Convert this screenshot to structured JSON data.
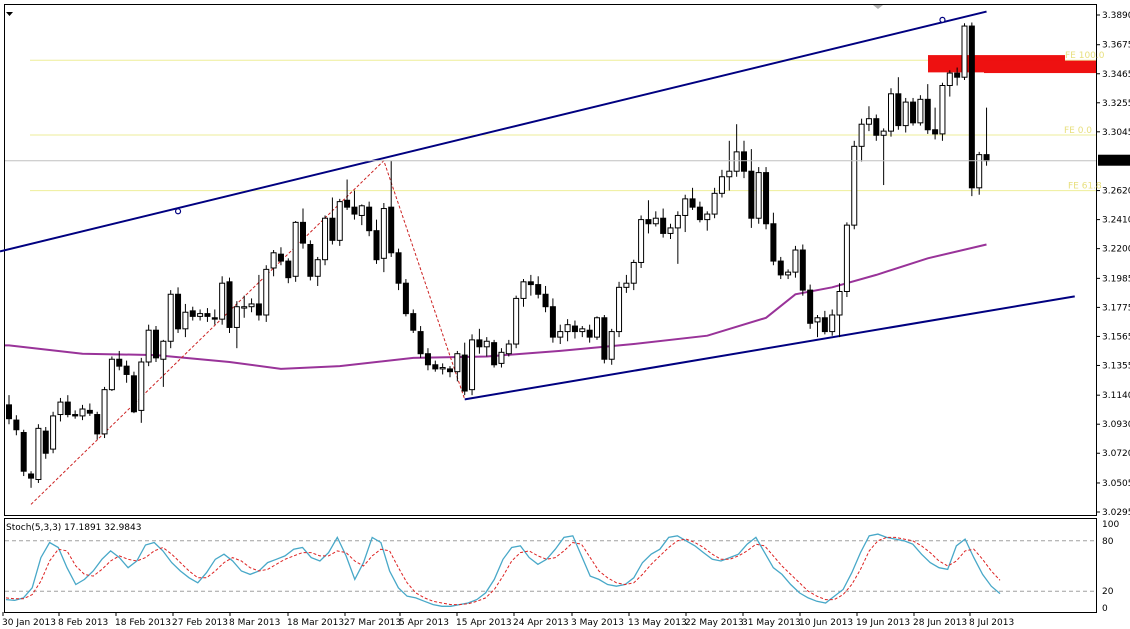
{
  "indicator_label": "Stoch(5,3,3) 17.1891 32.9843",
  "price_labels": [
    "3.3890",
    "3.3675",
    "3.3465",
    "3.3255",
    "3.3045",
    "3.2836",
    "3.2620",
    "3.2410",
    "3.2200",
    "3.1985",
    "3.1775",
    "3.1565",
    "3.1355",
    "3.1140",
    "3.0930",
    "3.0720",
    "3.0505",
    "3.0295"
  ],
  "current_price": "3.2836",
  "stoch_labels": [
    "100",
    "80",
    "20",
    "0"
  ],
  "fib_labels": [
    "FE 100.0",
    "FE 0.0",
    "FE 61.8"
  ],
  "date_labels": [
    "30 Jan 2013",
    "8 Feb 2013",
    "18 Feb 2013",
    "27 Feb 2013",
    "8 Mar 2013",
    "18 Mar 2013",
    "27 Mar 2013",
    "5 Apr 2013",
    "15 Apr 2013",
    "24 Apr 2013",
    "3 May 2013",
    "13 May 2013",
    "22 May 2013",
    "31 May 2013",
    "10 Jun 2013",
    "19 Jun 2013",
    "28 Jun 2013",
    "8 Jul 2013"
  ],
  "colors": {
    "candle": "#000000",
    "channel": "#000080",
    "moving_average": "#993399",
    "fib": "#eeee99",
    "resistance_zone": "#ee1111",
    "zigzag": "#cc2222",
    "stoch_main": "#48a8c8",
    "stoch_signal": "#dd2222",
    "stoch_levels": "#a0a0a0"
  },
  "chart_data": {
    "type": "candlestick",
    "ylim": [
      3.0295,
      3.389
    ],
    "fib_levels": [
      {
        "label": "FE 100.0",
        "value": 3.3563
      },
      {
        "label": "FE 0.0",
        "value": 3.3022
      },
      {
        "label": "FE 61.8",
        "value": 3.262
      }
    ],
    "resistance_zone": [
      3.3475,
      3.36
    ],
    "candles": [
      [
        3.107,
        3.114,
        3.093,
        3.097
      ],
      [
        3.096,
        3.0995,
        3.085,
        3.089
      ],
      [
        3.087,
        3.089,
        3.0555,
        3.059
      ],
      [
        3.057,
        3.059,
        3.047,
        3.054
      ],
      [
        3.053,
        3.093,
        3.0505,
        3.09
      ],
      [
        3.088,
        3.091,
        3.068,
        3.072
      ],
      [
        3.075,
        3.102,
        3.072,
        3.099
      ],
      [
        3.1,
        3.112,
        3.095,
        3.109
      ],
      [
        3.109,
        3.114,
        3.098,
        3.1
      ],
      [
        3.1,
        3.103,
        3.097,
        3.099
      ],
      [
        3.099,
        3.107,
        3.096,
        3.104
      ],
      [
        3.103,
        3.108,
        3.099,
        3.101
      ],
      [
        3.1,
        3.102,
        3.082,
        3.086
      ],
      [
        3.086,
        3.12,
        3.083,
        3.118
      ],
      [
        3.118,
        3.142,
        3.117,
        3.14
      ],
      [
        3.14,
        3.146,
        3.132,
        3.135
      ],
      [
        3.135,
        3.139,
        3.123,
        3.129
      ],
      [
        3.128,
        3.131,
        3.101,
        3.102
      ],
      [
        3.103,
        3.141,
        3.094,
        3.138
      ],
      [
        3.138,
        3.165,
        3.135,
        3.161
      ],
      [
        3.161,
        3.164,
        3.138,
        3.141
      ],
      [
        3.14,
        3.154,
        3.12,
        3.153
      ],
      [
        3.153,
        3.19,
        3.148,
        3.187
      ],
      [
        3.187,
        3.192,
        3.159,
        3.162
      ],
      [
        3.162,
        3.18,
        3.156,
        3.174
      ],
      [
        3.175,
        3.178,
        3.168,
        3.171
      ],
      [
        3.171,
        3.176,
        3.168,
        3.173
      ],
      [
        3.173,
        3.177,
        3.167,
        3.171
      ],
      [
        3.17,
        3.176,
        3.165,
        3.169
      ],
      [
        3.169,
        3.2,
        3.165,
        3.195
      ],
      [
        3.196,
        3.199,
        3.159,
        3.163
      ],
      [
        3.163,
        3.182,
        3.148,
        3.178
      ],
      [
        3.177,
        3.186,
        3.17,
        3.178
      ],
      [
        3.178,
        3.184,
        3.174,
        3.18
      ],
      [
        3.18,
        3.201,
        3.168,
        3.172
      ],
      [
        3.172,
        3.208,
        3.167,
        3.205
      ],
      [
        3.206,
        3.219,
        3.2,
        3.217
      ],
      [
        3.216,
        3.221,
        3.208,
        3.211
      ],
      [
        3.211,
        3.213,
        3.195,
        3.199
      ],
      [
        3.2,
        3.24,
        3.196,
        3.239
      ],
      [
        3.239,
        3.249,
        3.22,
        3.224
      ],
      [
        3.223,
        3.226,
        3.197,
        3.2
      ],
      [
        3.2,
        3.214,
        3.193,
        3.212
      ],
      [
        3.212,
        3.244,
        3.208,
        3.242
      ],
      [
        3.242,
        3.257,
        3.223,
        3.226
      ],
      [
        3.226,
        3.256,
        3.222,
        3.254
      ],
      [
        3.255,
        3.27,
        3.248,
        3.25
      ],
      [
        3.25,
        3.262,
        3.241,
        3.245
      ],
      [
        3.244,
        3.252,
        3.237,
        3.251
      ],
      [
        3.25,
        3.254,
        3.229,
        3.233
      ],
      [
        3.233,
        3.241,
        3.209,
        3.212
      ],
      [
        3.213,
        3.253,
        3.203,
        3.249
      ],
      [
        3.25,
        3.2836,
        3.214,
        3.217
      ],
      [
        3.217,
        3.22,
        3.19,
        3.195
      ],
      [
        3.195,
        3.198,
        3.171,
        3.173
      ],
      [
        3.173,
        3.176,
        3.159,
        3.161
      ],
      [
        3.16,
        3.164,
        3.141,
        3.144
      ],
      [
        3.144,
        3.148,
        3.132,
        3.136
      ],
      [
        3.136,
        3.139,
        3.131,
        3.133
      ],
      [
        3.133,
        3.137,
        3.129,
        3.134
      ],
      [
        3.133,
        3.135,
        3.127,
        3.131
      ],
      [
        3.131,
        3.146,
        3.124,
        3.144
      ],
      [
        3.143,
        3.152,
        3.114,
        3.117
      ],
      [
        3.118,
        3.158,
        3.114,
        3.154
      ],
      [
        3.154,
        3.162,
        3.144,
        3.149
      ],
      [
        3.149,
        3.156,
        3.142,
        3.153
      ],
      [
        3.152,
        3.154,
        3.134,
        3.136
      ],
      [
        3.137,
        3.148,
        3.134,
        3.145
      ],
      [
        3.144,
        3.154,
        3.142,
        3.151
      ],
      [
        3.151,
        3.186,
        3.148,
        3.184
      ],
      [
        3.184,
        3.198,
        3.178,
        3.196
      ],
      [
        3.196,
        3.201,
        3.186,
        3.194
      ],
      [
        3.194,
        3.2,
        3.184,
        3.187
      ],
      [
        3.187,
        3.193,
        3.174,
        3.178
      ],
      [
        3.178,
        3.184,
        3.152,
        3.156
      ],
      [
        3.156,
        3.165,
        3.151,
        3.16
      ],
      [
        3.16,
        3.169,
        3.153,
        3.165
      ],
      [
        3.164,
        3.168,
        3.155,
        3.16
      ],
      [
        3.16,
        3.164,
        3.156,
        3.162
      ],
      [
        3.161,
        3.165,
        3.152,
        3.156
      ],
      [
        3.156,
        3.171,
        3.154,
        3.17
      ],
      [
        3.17,
        3.172,
        3.137,
        3.14
      ],
      [
        3.14,
        3.162,
        3.136,
        3.16
      ],
      [
        3.16,
        3.196,
        3.156,
        3.192
      ],
      [
        3.192,
        3.201,
        3.188,
        3.195
      ],
      [
        3.195,
        3.212,
        3.19,
        3.21
      ],
      [
        3.21,
        3.244,
        3.206,
        3.241
      ],
      [
        3.241,
        3.255,
        3.231,
        3.238
      ],
      [
        3.238,
        3.247,
        3.236,
        3.242
      ],
      [
        3.242,
        3.249,
        3.228,
        3.231
      ],
      [
        3.231,
        3.238,
        3.227,
        3.235
      ],
      [
        3.235,
        3.247,
        3.209,
        3.244
      ],
      [
        3.244,
        3.259,
        3.232,
        3.256
      ],
      [
        3.256,
        3.264,
        3.248,
        3.25
      ],
      [
        3.25,
        3.254,
        3.239,
        3.241
      ],
      [
        3.241,
        3.247,
        3.233,
        3.245
      ],
      [
        3.245,
        3.264,
        3.242,
        3.26
      ],
      [
        3.26,
        3.277,
        3.257,
        3.272
      ],
      [
        3.272,
        3.298,
        3.262,
        3.276
      ],
      [
        3.276,
        3.31,
        3.272,
        3.29
      ],
      [
        3.29,
        3.298,
        3.271,
        3.276
      ],
      [
        3.276,
        3.292,
        3.235,
        3.242
      ],
      [
        3.242,
        3.279,
        3.238,
        3.275
      ],
      [
        3.275,
        3.279,
        3.234,
        3.238
      ],
      [
        3.238,
        3.246,
        3.208,
        3.211
      ],
      [
        3.211,
        3.214,
        3.198,
        3.201
      ],
      [
        3.201,
        3.205,
        3.198,
        3.203
      ],
      [
        3.203,
        3.222,
        3.199,
        3.219
      ],
      [
        3.219,
        3.223,
        3.186,
        3.19
      ],
      [
        3.19,
        3.194,
        3.162,
        3.166
      ],
      [
        3.167,
        3.172,
        3.156,
        3.17
      ],
      [
        3.17,
        3.175,
        3.158,
        3.16
      ],
      [
        3.16,
        3.176,
        3.157,
        3.172
      ],
      [
        3.172,
        3.195,
        3.156,
        3.189
      ],
      [
        3.189,
        3.239,
        3.185,
        3.237
      ],
      [
        3.237,
        3.298,
        3.234,
        3.294
      ],
      [
        3.294,
        3.314,
        3.283,
        3.31
      ],
      [
        3.31,
        3.323,
        3.305,
        3.314
      ],
      [
        3.314,
        3.317,
        3.298,
        3.302
      ],
      [
        3.302,
        3.307,
        3.266,
        3.305
      ],
      [
        3.305,
        3.336,
        3.301,
        3.332
      ],
      [
        3.332,
        3.344,
        3.306,
        3.309
      ],
      [
        3.309,
        3.329,
        3.304,
        3.326
      ],
      [
        3.326,
        3.329,
        3.309,
        3.311
      ],
      [
        3.311,
        3.331,
        3.309,
        3.328
      ],
      [
        3.328,
        3.339,
        3.303,
        3.306
      ],
      [
        3.306,
        3.322,
        3.299,
        3.303
      ],
      [
        3.303,
        3.34,
        3.298,
        3.338
      ],
      [
        3.338,
        3.349,
        3.33,
        3.347
      ],
      [
        3.347,
        3.351,
        3.338,
        3.344
      ],
      [
        3.344,
        3.383,
        3.342,
        3.381
      ],
      [
        3.381,
        3.3836,
        3.258,
        3.264
      ],
      [
        3.264,
        3.29,
        3.259,
        3.288
      ],
      [
        3.288,
        3.322,
        3.28,
        3.2836
      ]
    ],
    "moving_average": [
      [
        0,
        3.15
      ],
      [
        10,
        3.144
      ],
      [
        20,
        3.143
      ],
      [
        30,
        3.138
      ],
      [
        37,
        3.133
      ],
      [
        45,
        3.135
      ],
      [
        55,
        3.141
      ],
      [
        65,
        3.142
      ],
      [
        75,
        3.146
      ],
      [
        85,
        3.151
      ],
      [
        95,
        3.157
      ],
      [
        103,
        3.17
      ],
      [
        107,
        3.187
      ],
      [
        112,
        3.192
      ],
      [
        118,
        3.201
      ],
      [
        125,
        3.213
      ],
      [
        133,
        3.223
      ]
    ],
    "channel_lines": [
      {
        "name": "upper",
        "from": [
          0,
          3.218
        ],
        "to": [
          133,
          3.3915
        ],
        "anchors": [
          [
            23,
            3.247
          ],
          [
            127,
            3.3855
          ]
        ]
      },
      {
        "name": "lower",
        "from": [
          62,
          3.111
        ],
        "to": [
          145,
          3.1855
        ]
      }
    ],
    "zigzag": [
      [
        3,
        3.035
      ],
      [
        51,
        3.2836
      ],
      [
        62,
        3.111
      ]
    ],
    "stochastic": {
      "ylim": [
        0,
        100
      ],
      "levels": [
        80,
        20
      ],
      "main": [
        10,
        9,
        12,
        24,
        60,
        78,
        72,
        48,
        28,
        34,
        44,
        58,
        68,
        60,
        48,
        56,
        75,
        78,
        68,
        54,
        44,
        36,
        30,
        42,
        58,
        64,
        56,
        44,
        40,
        44,
        54,
        58,
        62,
        70,
        72,
        60,
        56,
        66,
        84,
        62,
        34,
        54,
        84,
        78,
        44,
        24,
        14,
        12,
        8,
        4,
        2,
        2,
        4,
        6,
        10,
        18,
        34,
        58,
        72,
        74,
        60,
        52,
        58,
        70,
        84,
        86,
        62,
        38,
        34,
        28,
        26,
        28,
        36,
        54,
        64,
        70,
        84,
        86,
        80,
        74,
        66,
        58,
        56,
        60,
        64,
        76,
        84,
        66,
        48,
        40,
        28,
        18,
        12,
        8,
        6,
        14,
        22,
        42,
        66,
        86,
        88,
        84,
        82,
        80,
        76,
        64,
        54,
        48,
        46,
        74,
        82,
        60,
        40,
        26,
        17.19
      ],
      "signal": [
        12,
        11,
        11,
        16,
        32,
        56,
        70,
        68,
        50,
        40,
        38,
        46,
        56,
        62,
        58,
        56,
        60,
        68,
        72,
        64,
        54,
        44,
        36,
        36,
        44,
        54,
        60,
        56,
        48,
        44,
        46,
        52,
        58,
        62,
        66,
        66,
        62,
        62,
        68,
        66,
        56,
        50,
        62,
        70,
        68,
        48,
        30,
        18,
        12,
        8,
        6,
        4,
        4,
        5,
        8,
        12,
        22,
        38,
        56,
        66,
        68,
        62,
        58,
        60,
        68,
        78,
        76,
        60,
        44,
        36,
        30,
        28,
        30,
        40,
        52,
        62,
        72,
        80,
        82,
        78,
        72,
        64,
        58,
        58,
        62,
        68,
        76,
        74,
        62,
        50,
        40,
        30,
        20,
        14,
        10,
        10,
        16,
        28,
        46,
        68,
        80,
        84,
        84,
        82,
        80,
        74,
        66,
        56,
        50,
        56,
        68,
        70,
        58,
        44,
        32.98
      ]
    }
  }
}
